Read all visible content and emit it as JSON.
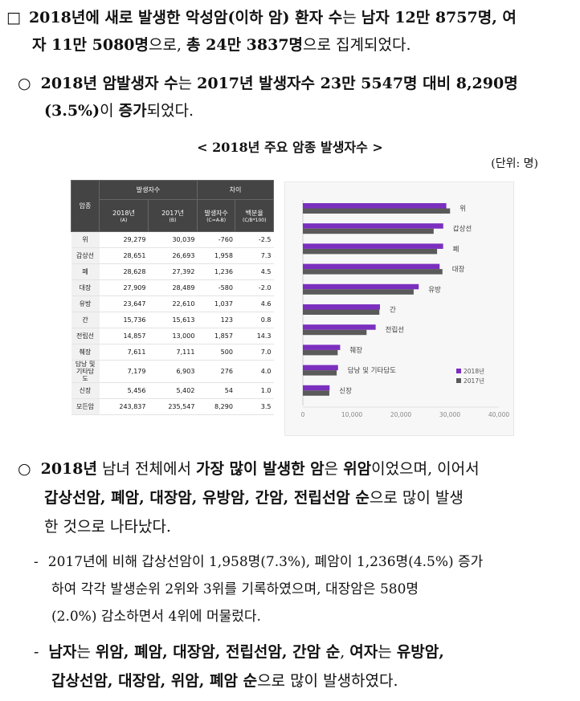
{
  "p1": {
    "marker": "□",
    "l1a": "2018년에 새로 발생한 악성암(이하 암) 환자 수",
    "l1b": "는 ",
    "l1c": "남자 12만 8757명, 여",
    "l2a": "자 11만 5080명",
    "l2b": "으로, ",
    "l2c": "총 24만 3837명",
    "l2d": "으로 집계되었다."
  },
  "p2": {
    "marker": "○",
    "l1a": "2018년 암발생자 수",
    "l1b": "는 ",
    "l1c": "2017년 발생자수 23만 5547명 대비 8,290명",
    "l2a": "(3.5%)",
    "l2b": "이 ",
    "l2c": "증가",
    "l2d": "되었다."
  },
  "table_title": "< 2018년 주요 암종 발생자수 >",
  "unit": "(단위: 명)",
  "table": {
    "h_cancer": "암종",
    "h_count": "발생자수",
    "h_diff": "차이",
    "h_2018": "2018년",
    "h_2018_sub": "(A)",
    "h_2017": "2017년",
    "h_2017_sub": "(B)",
    "h_diffcount": "발생자수",
    "h_diffcount_sub": "(C=A-B)",
    "h_pct": "백분율",
    "h_pct_sub": "(C/B*100)",
    "rows": [
      {
        "name": "위",
        "a": "29,279",
        "b": "30,039",
        "c": "-760",
        "d": "-2.5"
      },
      {
        "name": "갑상선",
        "a": "28,651",
        "b": "26,693",
        "c": "1,958",
        "d": "7.3"
      },
      {
        "name": "폐",
        "a": "28,628",
        "b": "27,392",
        "c": "1,236",
        "d": "4.5"
      },
      {
        "name": "대장",
        "a": "27,909",
        "b": "28,489",
        "c": "-580",
        "d": "-2.0"
      },
      {
        "name": "유방",
        "a": "23,647",
        "b": "22,610",
        "c": "1,037",
        "d": "4.6"
      },
      {
        "name": "간",
        "a": "15,736",
        "b": "15,613",
        "c": "123",
        "d": "0.8"
      },
      {
        "name": "전립선",
        "a": "14,857",
        "b": "13,000",
        "c": "1,857",
        "d": "14.3"
      },
      {
        "name": "췌장",
        "a": "7,611",
        "b": "7,111",
        "c": "500",
        "d": "7.0"
      },
      {
        "name": "담낭 및 기타담도",
        "a": "7,179",
        "b": "6,903",
        "c": "276",
        "d": "4.0"
      },
      {
        "name": "신장",
        "a": "5,456",
        "b": "5,402",
        "c": "54",
        "d": "1.0"
      }
    ],
    "total": {
      "name": "모든암",
      "a": "243,837",
      "b": "235,547",
      "c": "8,290",
      "d": "3.5"
    }
  },
  "chart_data": {
    "type": "bar",
    "orientation": "horizontal",
    "categories": [
      "위",
      "갑상선",
      "폐",
      "대장",
      "유방",
      "간",
      "전립선",
      "췌장",
      "담낭 및 기타담도",
      "신장"
    ],
    "series": [
      {
        "name": "2018년",
        "color": "#7b2fbe",
        "values": [
          29279,
          28651,
          28628,
          27909,
          23647,
          15736,
          14857,
          7611,
          7179,
          5456
        ]
      },
      {
        "name": "2017년",
        "color": "#5a5a5a",
        "values": [
          30039,
          26693,
          27392,
          28489,
          22610,
          15613,
          13000,
          7111,
          6903,
          5402
        ]
      }
    ],
    "xlim": [
      0,
      40000
    ],
    "xticks": [
      "0",
      "10,000",
      "20,000",
      "30,000",
      "40,000"
    ],
    "legend": "right",
    "grid": false
  },
  "p3": {
    "marker": "○",
    "l1a": "2018년",
    "l1b": " 남녀 전체에서 ",
    "l1c": "가장 많이 발생한 암",
    "l1d": "은 ",
    "l1e": "위암",
    "l1f": "이었으며, 이어서",
    "l2a": "갑상선암, 폐암, 대장암, 유방암, 간암, 전립선암 순",
    "l2b": "으로 많이 발생",
    "l3": "한 것으로 나타났다."
  },
  "p4": {
    "marker": "-",
    "l1": "2017년에 비해 갑상선암이 1,958명(7.3%), 폐암이 1,236명(4.5%) 증가",
    "l2": "하여 각각 발생순위 2위와 3위를 기록하였으며, 대장암은 580명",
    "l3": "(2.0%) 감소하면서 4위에 머물렀다."
  },
  "p5": {
    "marker": "-",
    "l1a": "남자",
    "l1b": "는 ",
    "l1c": "위암, 폐암, 대장암, 전립선암, 간암 순",
    "l1d": ", ",
    "l1e": "여자",
    "l1f": "는 ",
    "l1g": "유방암,",
    "l2a": "갑상선암, 대장암, 위암, 폐암 순",
    "l2b": "으로 많이 발생하였다."
  }
}
